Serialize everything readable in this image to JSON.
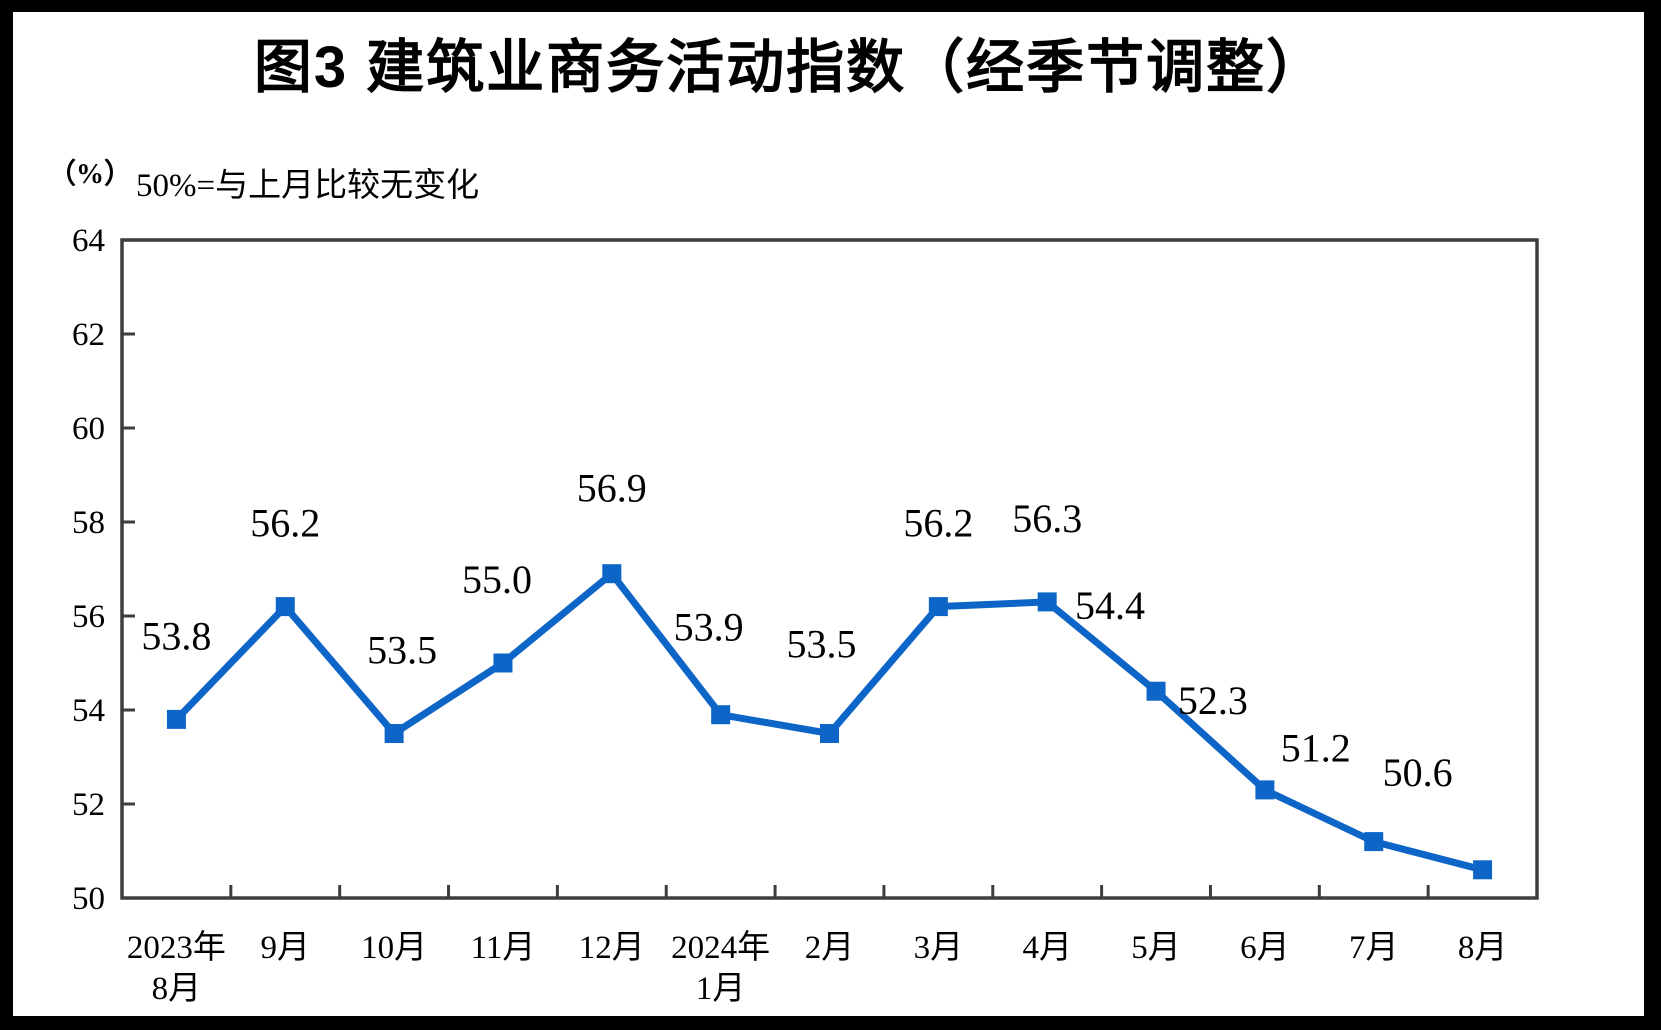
{
  "title": "图3  建筑业商务活动指数（经季节调整）",
  "unit_label": "（%）",
  "subtitle": "50%=与上月比较无变化",
  "colors": {
    "line": "#0E65C8",
    "axis": "#3D3D3D",
    "text": "#000000",
    "frame": "#000000",
    "background": "#FFFFFF"
  },
  "chart_data": {
    "type": "line",
    "title": "图3  建筑业商务活动指数（经季节调整）",
    "series_name": "建筑业商务活动指数（经季节调整）",
    "categories": [
      "2023年\n8月",
      "9月",
      "10月",
      "11月",
      "12月",
      "2024年\n1月",
      "2月",
      "3月",
      "4月",
      "5月",
      "6月",
      "7月",
      "8月"
    ],
    "values": [
      53.8,
      56.2,
      53.5,
      55.0,
      56.9,
      53.9,
      53.5,
      56.2,
      56.3,
      54.4,
      52.3,
      51.2,
      50.6
    ],
    "data_labels": [
      "53.8",
      "56.2",
      "53.5",
      "55.0",
      "56.9",
      "53.9",
      "53.5",
      "56.2",
      "56.3",
      "54.4",
      "52.3",
      "51.2",
      "50.6"
    ],
    "xlabel": "",
    "ylabel": "（%）",
    "ylim": [
      50,
      64
    ],
    "ytick_step": 2,
    "yticks": [
      50,
      52,
      54,
      56,
      58,
      60,
      62,
      64
    ],
    "grid": false,
    "legend_position": "none",
    "marker": "square",
    "annotation": "50%=与上月比较无变化"
  }
}
